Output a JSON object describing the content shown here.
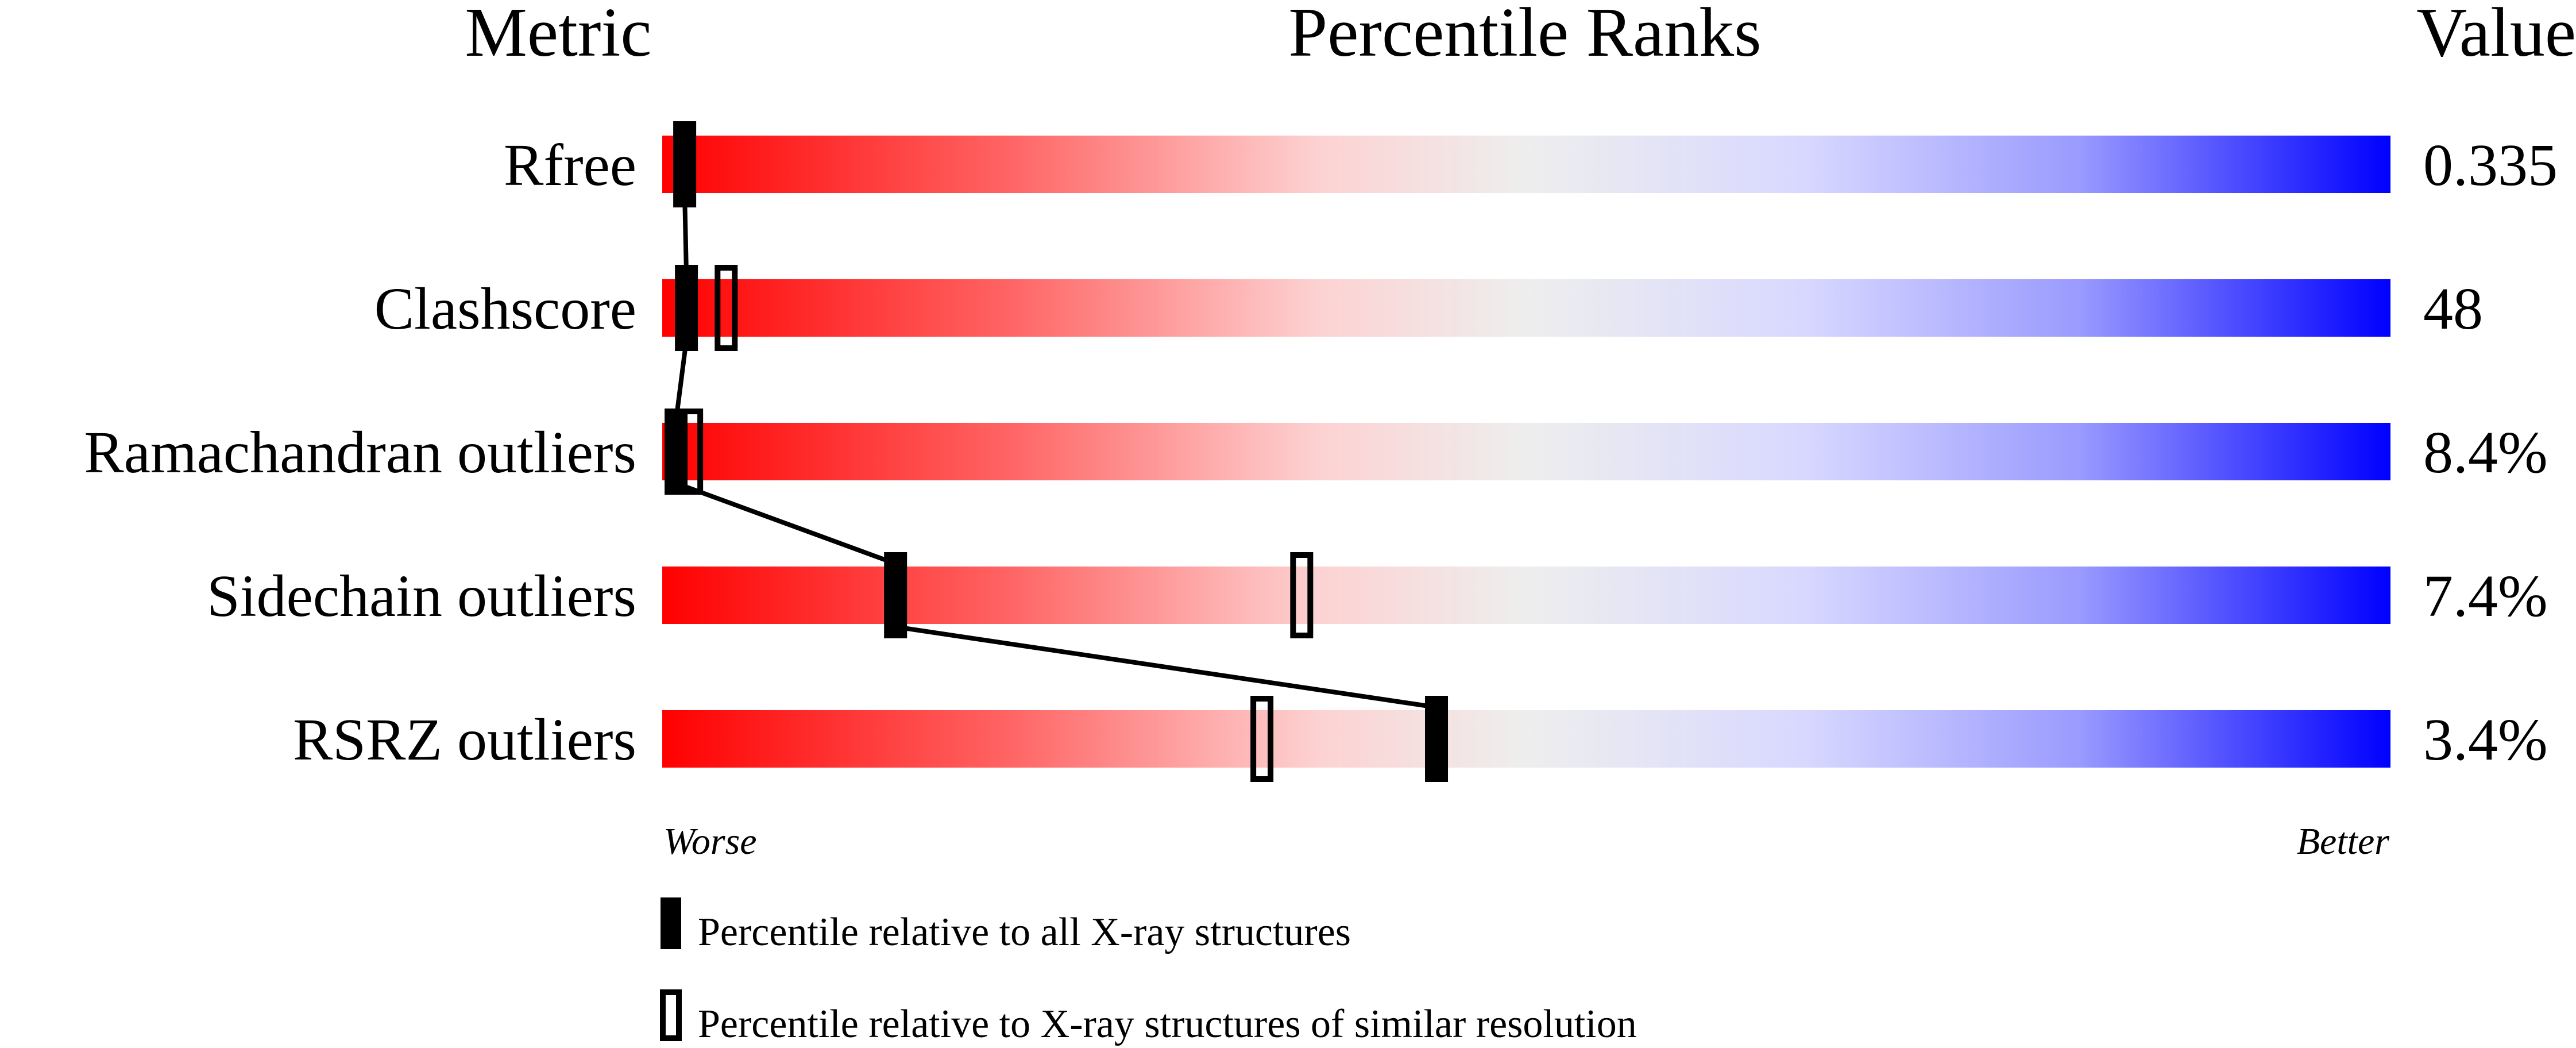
{
  "chart_data": {
    "type": "bar",
    "headers": {
      "metric": "Metric",
      "percentile": "Percentile Ranks",
      "value": "Value"
    },
    "xlim": [
      0,
      100
    ],
    "scale_labels": {
      "left": "Worse",
      "right": "Better"
    },
    "gradient_colors": {
      "worse": "#ff0000",
      "middle": "#eeeeee",
      "better": "#0000ff"
    },
    "rows": [
      {
        "metric": "Rfree",
        "value": "0.335",
        "percentile_all": 1.3,
        "percentile_similar": null
      },
      {
        "metric": "Clashscore",
        "value": "48",
        "percentile_all": 1.4,
        "percentile_similar": 3.7
      },
      {
        "metric": "Ramachandran outliers",
        "value": "8.4%",
        "percentile_all": 0.8,
        "percentile_similar": 1.7
      },
      {
        "metric": "Sidechain outliers",
        "value": "7.4%",
        "percentile_all": 13.5,
        "percentile_similar": 37
      },
      {
        "metric": "RSRZ outliers",
        "value": "3.4%",
        "percentile_all": 44.8,
        "percentile_similar": 34.7
      }
    ],
    "legend": [
      {
        "marker": "filled",
        "label": "Percentile relative to all X-ray structures"
      },
      {
        "marker": "open",
        "label": "Percentile relative to X-ray structures of similar resolution"
      }
    ]
  }
}
